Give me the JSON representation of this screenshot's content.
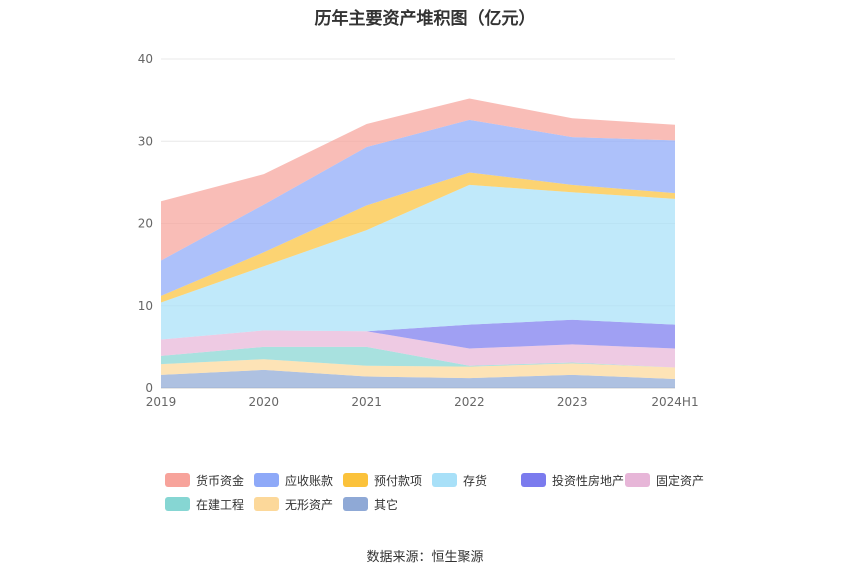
{
  "chart_data": {
    "type": "area",
    "stacked": true,
    "title": "历年主要资产堆积图（亿元）",
    "categories": [
      "2019",
      "2020",
      "2021",
      "2022",
      "2023",
      "2024H1"
    ],
    "ylim": [
      0,
      40
    ],
    "yticks": [
      0,
      10,
      20,
      30,
      40
    ],
    "xlabel": "",
    "ylabel": "",
    "grid": true,
    "legend_position": "bottom",
    "series": [
      {
        "name": "其它",
        "color": "#8fa9d6",
        "values": [
          1.6,
          2.2,
          1.4,
          1.2,
          1.6,
          1.1
        ]
      },
      {
        "name": "无形资产",
        "color": "#fcd89a",
        "values": [
          1.3,
          1.3,
          1.3,
          1.4,
          1.4,
          1.4
        ]
      },
      {
        "name": "在建工程",
        "color": "#86d6d3",
        "values": [
          1.0,
          1.5,
          2.3,
          0.1,
          0.1,
          0.0
        ]
      },
      {
        "name": "固定资产",
        "color": "#e7b6d8",
        "values": [
          2.0,
          2.0,
          1.9,
          2.1,
          2.2,
          2.3
        ]
      },
      {
        "name": "投资性房地产",
        "color": "#7b7bee",
        "values": [
          0.0,
          0.0,
          0.0,
          2.9,
          3.0,
          2.9
        ]
      },
      {
        "name": "存货",
        "color": "#a8e0f8",
        "values": [
          4.5,
          7.8,
          12.3,
          17.0,
          15.5,
          15.3
        ]
      },
      {
        "name": "预付款项",
        "color": "#fbc23b",
        "values": [
          0.8,
          1.7,
          3.0,
          1.5,
          0.9,
          0.7
        ]
      },
      {
        "name": "应收账款",
        "color": "#8ea9f8",
        "values": [
          4.3,
          5.8,
          7.1,
          6.4,
          5.8,
          6.4
        ]
      },
      {
        "name": "货币资金",
        "color": "#f7a39b",
        "values": [
          7.2,
          3.7,
          2.8,
          2.6,
          2.3,
          1.9
        ]
      }
    ],
    "legend_order": [
      "货币资金",
      "应收账款",
      "预付款项",
      "存货",
      "投资性房地产",
      "固定资产",
      "在建工程",
      "无形资产",
      "其它"
    ]
  },
  "source_text": "数据来源：恒生聚源"
}
